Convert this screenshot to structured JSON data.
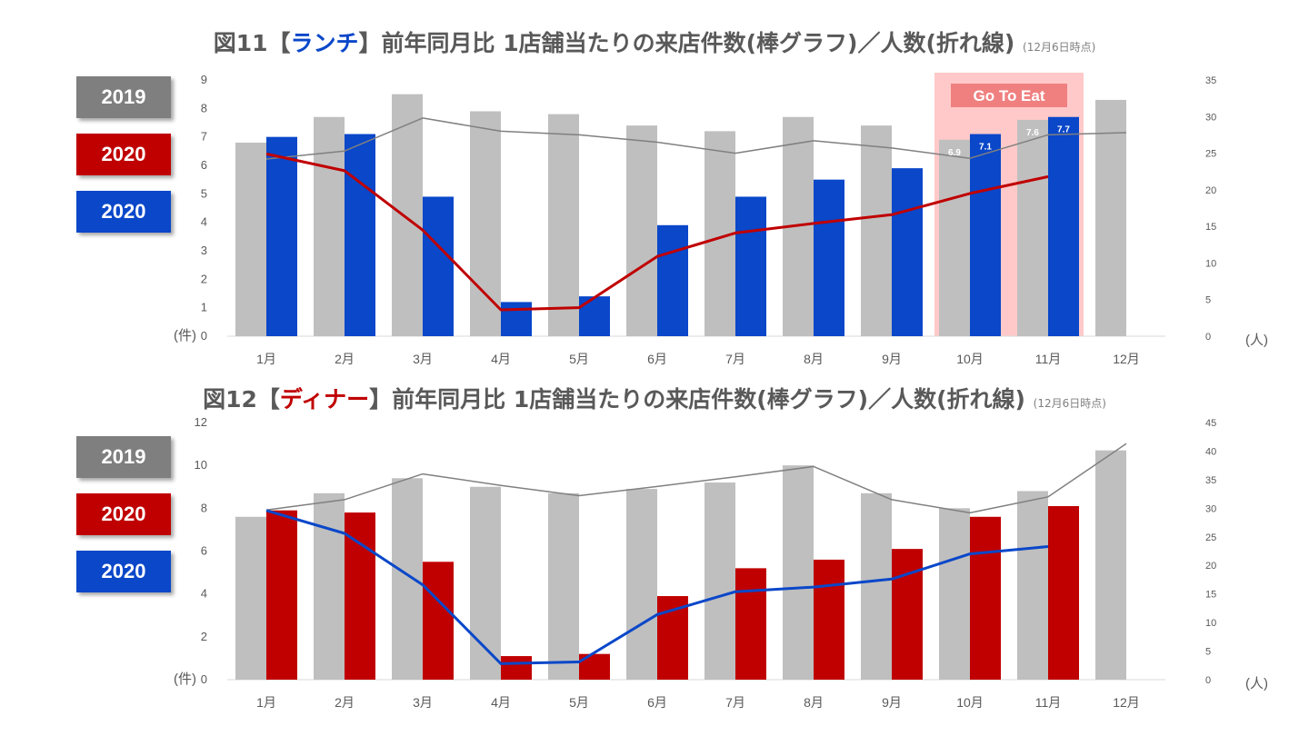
{
  "colors": {
    "gray_bar": "#bfbfbf",
    "red": "#c00000",
    "blue": "#0a47c9",
    "line_2019": "#808080",
    "legend_2019": "#7f7f7f",
    "goto_band": "#ffc9c9",
    "goto_label": "#f08080"
  },
  "chart_data": [
    {
      "type": "bar",
      "title_prefix": "図11【",
      "title_highlight": "ランチ",
      "title_rest": "】前年同月比 1店舗当たりの来店件数(棒グラフ)／人数(折れ線)",
      "title_note": "(12月6日時点)",
      "categories": [
        "1月",
        "2月",
        "3月",
        "4月",
        "5月",
        "6月",
        "7月",
        "8月",
        "9月",
        "10月",
        "11月",
        "12月"
      ],
      "left_axis": {
        "label": "(件)",
        "ylim": [
          0,
          9
        ],
        "ticks": [
          "0",
          "1",
          "2",
          "3",
          "4",
          "5",
          "6",
          "7",
          "8",
          "9"
        ]
      },
      "right_axis": {
        "label": "(人)",
        "ylim": [
          0,
          35
        ],
        "ticks": [
          "0",
          "5",
          "10",
          "15",
          "20",
          "25",
          "30",
          "35"
        ]
      },
      "legend": [
        {
          "label": "2019",
          "color": "#7f7f7f"
        },
        {
          "label": "2020",
          "color": "#c00000"
        },
        {
          "label": "2020",
          "color": "#0a47c9"
        }
      ],
      "series": [
        {
          "name": "2019 件数",
          "kind": "bar",
          "axis": "left",
          "color": "#bfbfbf",
          "values": [
            6.8,
            7.7,
            8.5,
            7.9,
            7.8,
            7.4,
            7.2,
            7.7,
            7.4,
            6.9,
            7.6,
            8.3
          ]
        },
        {
          "name": "2020 件数",
          "kind": "bar",
          "axis": "left",
          "color": "#0a47c9",
          "values": [
            7.0,
            7.1,
            4.9,
            1.2,
            1.4,
            3.9,
            4.9,
            5.5,
            5.9,
            7.1,
            7.7,
            null
          ]
        },
        {
          "name": "2019 人数",
          "kind": "line",
          "axis": "right",
          "color": "#808080",
          "width": 1.5,
          "values": [
            24.2,
            25.3,
            29.8,
            28.0,
            27.5,
            26.5,
            25.0,
            26.7,
            25.7,
            24.3,
            27.5,
            27.8
          ]
        },
        {
          "name": "2020 人数",
          "kind": "line",
          "axis": "right",
          "color": "#c00000",
          "width": 3,
          "values": [
            24.9,
            22.6,
            14.5,
            3.6,
            3.9,
            10.9,
            14.1,
            15.4,
            16.6,
            19.5,
            21.8,
            null
          ]
        }
      ],
      "data_labels": [
        {
          "cat": 9,
          "series": 0,
          "text": "6.9"
        },
        {
          "cat": 9,
          "series": 1,
          "text": "7.1"
        },
        {
          "cat": 10,
          "series": 0,
          "text": "7.6"
        },
        {
          "cat": 10,
          "series": 1,
          "text": "7.7"
        }
      ],
      "annotation": {
        "text": "Go To Eat",
        "from_cat": 9,
        "to_cat": 10
      }
    },
    {
      "type": "bar",
      "title_prefix": "図12【",
      "title_highlight": "ディナー",
      "title_rest": "】前年同月比 1店舗当たりの来店件数(棒グラフ)／人数(折れ線)",
      "title_note": "(12月6日時点)",
      "categories": [
        "1月",
        "2月",
        "3月",
        "4月",
        "5月",
        "6月",
        "7月",
        "8月",
        "9月",
        "10月",
        "11月",
        "12月"
      ],
      "left_axis": {
        "label": "(件)",
        "ylim": [
          0,
          12
        ],
        "ticks": [
          "0",
          "2",
          "4",
          "6",
          "8",
          "10",
          "12"
        ]
      },
      "right_axis": {
        "label": "(人)",
        "ylim": [
          0,
          45
        ],
        "ticks": [
          "0",
          "5",
          "10",
          "15",
          "20",
          "25",
          "30",
          "35",
          "40",
          "45"
        ]
      },
      "legend": [
        {
          "label": "2019",
          "color": "#7f7f7f"
        },
        {
          "label": "2020",
          "color": "#c00000"
        },
        {
          "label": "2020",
          "color": "#0a47c9"
        }
      ],
      "series": [
        {
          "name": "2019 件数",
          "kind": "bar",
          "axis": "left",
          "color": "#bfbfbf",
          "values": [
            7.6,
            8.7,
            9.4,
            9.0,
            8.7,
            8.9,
            9.2,
            10.0,
            8.7,
            8.0,
            8.8,
            10.7
          ]
        },
        {
          "name": "2020 件数",
          "kind": "bar",
          "axis": "left",
          "color": "#c00000",
          "values": [
            7.9,
            7.8,
            5.5,
            1.1,
            1.2,
            3.9,
            5.2,
            5.6,
            6.1,
            7.6,
            8.1,
            null
          ]
        },
        {
          "name": "2019 人数",
          "kind": "line",
          "axis": "right",
          "color": "#808080",
          "width": 1.5,
          "values": [
            29.7,
            31.5,
            36.0,
            34.0,
            32.2,
            33.8,
            35.5,
            37.3,
            31.5,
            29.2,
            32.0,
            41.3
          ]
        },
        {
          "name": "2020 人数",
          "kind": "line",
          "axis": "right",
          "color": "#0a47c9",
          "width": 3,
          "values": [
            29.6,
            25.6,
            16.6,
            2.8,
            3.1,
            11.4,
            15.4,
            16.2,
            17.6,
            22.0,
            23.3,
            null
          ]
        }
      ],
      "data_labels": [],
      "annotation": null
    }
  ]
}
